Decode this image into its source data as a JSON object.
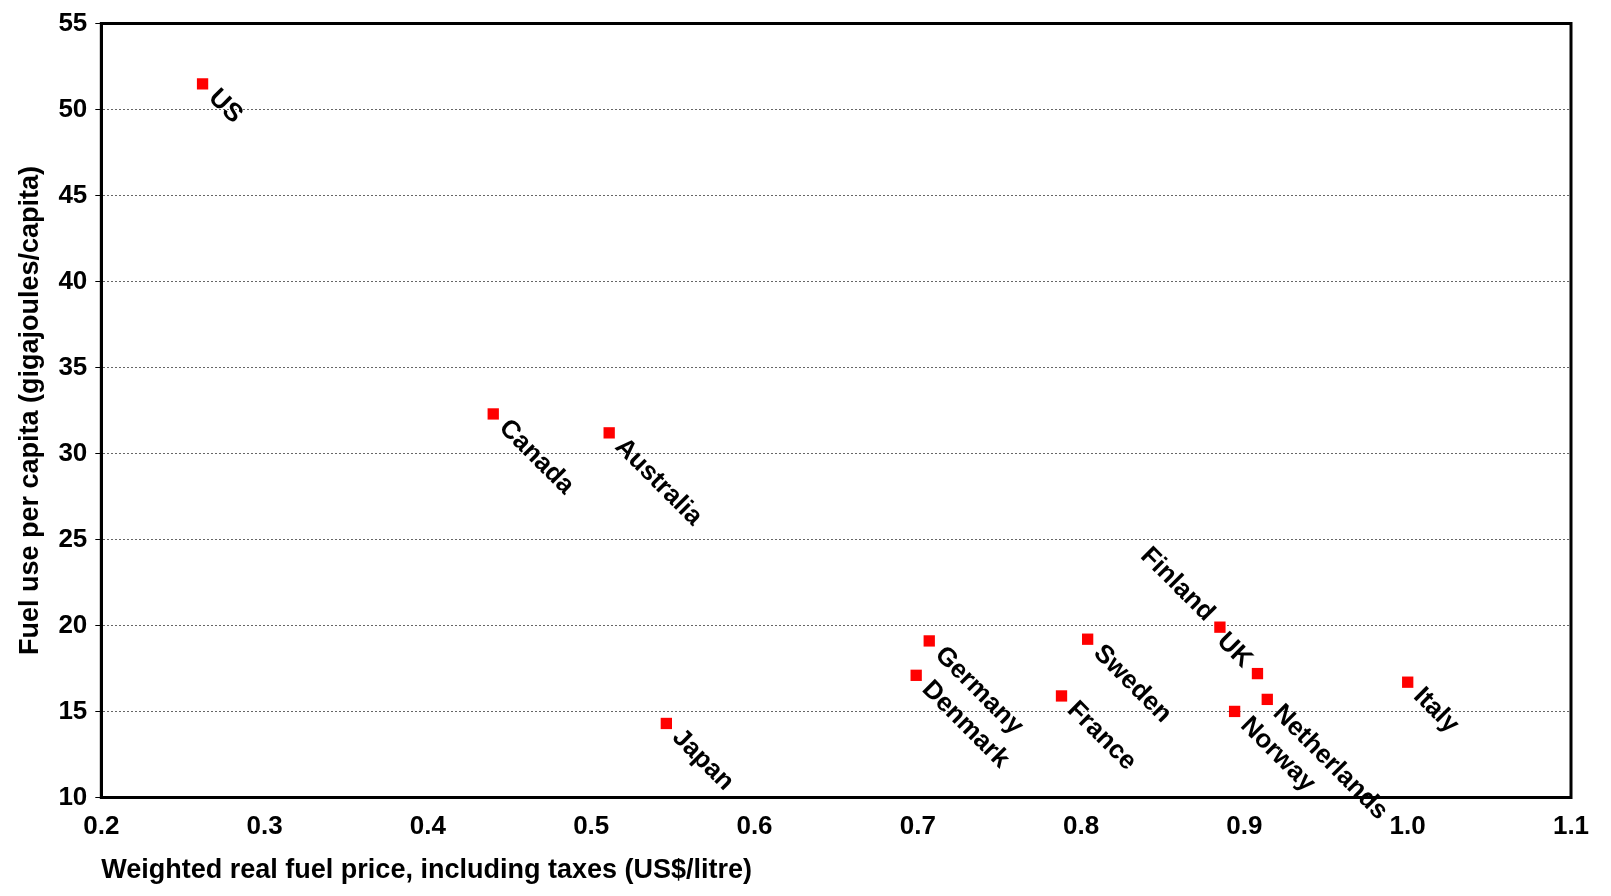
{
  "chart_data": {
    "type": "scatter",
    "xlabel": "Weighted real fuel price, including taxes (US$/litre)",
    "ylabel": "Fuel use per capita (gigajoules/capita)",
    "x": [
      0.262,
      0.44,
      0.511,
      0.546,
      0.707,
      0.699,
      0.804,
      0.788,
      0.885,
      0.908,
      0.894,
      0.914,
      1.0
    ],
    "series": [
      {
        "color": "#ff0000",
        "values": [
          51.5,
          32.3,
          31.2,
          14.3,
          19.1,
          17.1,
          19.2,
          15.9,
          19.9,
          17.2,
          15.0,
          15.7,
          16.7
        ]
      }
    ],
    "annotations": [
      {
        "text": "US",
        "x": 0.262,
        "y": 51.5
      },
      {
        "text": "Canada",
        "x": 0.44,
        "y": 32.3
      },
      {
        "text": "Australia",
        "x": 0.511,
        "y": 31.2
      },
      {
        "text": "Japan",
        "x": 0.546,
        "y": 14.3
      },
      {
        "text": "Germany",
        "x": 0.707,
        "y": 19.1
      },
      {
        "text": "Denmark",
        "x": 0.699,
        "y": 17.1
      },
      {
        "text": "Sweden",
        "x": 0.804,
        "y": 19.2
      },
      {
        "text": "France",
        "x": 0.788,
        "y": 15.9
      },
      {
        "text": "Finland",
        "x": 0.885,
        "y": 19.9
      },
      {
        "text": "UK",
        "x": 0.908,
        "y": 17.2
      },
      {
        "text": "Norway",
        "x": 0.894,
        "y": 15.0
      },
      {
        "text": "Netherlands",
        "x": 0.914,
        "y": 15.7
      },
      {
        "text": "Italy",
        "x": 1.0,
        "y": 16.7
      }
    ],
    "xlim": [
      0.2,
      1.1
    ],
    "xticks": [
      0.2,
      0.3,
      0.4,
      0.5,
      0.6,
      0.7,
      0.8,
      0.9,
      {
        "value": 1.0,
        "label": "1.0"
      },
      1.1
    ],
    "ylim": [
      10,
      55
    ],
    "yticks": [
      10,
      15,
      20,
      25,
      30,
      35,
      40,
      45,
      50,
      55
    ],
    "grid": "y",
    "marker": "square",
    "legend": false
  }
}
